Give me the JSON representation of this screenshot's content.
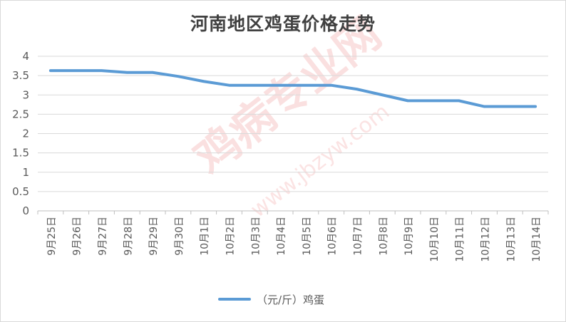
{
  "watermark": {
    "text": "鸡病专业网",
    "url": "www.jbzyw.com"
  },
  "chart_data": {
    "type": "line",
    "title": "河南地区鸡蛋价格走势",
    "xlabel": "",
    "ylabel": "",
    "categories": [
      "9月25日",
      "9月26日",
      "9月27日",
      "9月28日",
      "9月29日",
      "9月30日",
      "10月1日",
      "10月2日",
      "10月3日",
      "10月4日",
      "10月5日",
      "10月6日",
      "10月7日",
      "10月8日",
      "10月9日",
      "10月10日",
      "10月11日",
      "10月12日",
      "10月13日",
      "10月14日"
    ],
    "series": [
      {
        "name": "（元/斤）鸡蛋",
        "values": [
          3.63,
          3.63,
          3.63,
          3.58,
          3.58,
          3.48,
          3.35,
          3.25,
          3.25,
          3.25,
          3.25,
          3.25,
          3.15,
          3.0,
          2.85,
          2.85,
          2.85,
          2.7,
          2.7,
          2.7
        ],
        "color": "#5b9bd5"
      }
    ],
    "ylim": [
      0,
      4
    ],
    "yticks": [
      "0",
      "0.5",
      "1",
      "1.5",
      "2",
      "2.5",
      "3",
      "3.5",
      "4"
    ],
    "grid": true,
    "legend_position": "bottom"
  }
}
